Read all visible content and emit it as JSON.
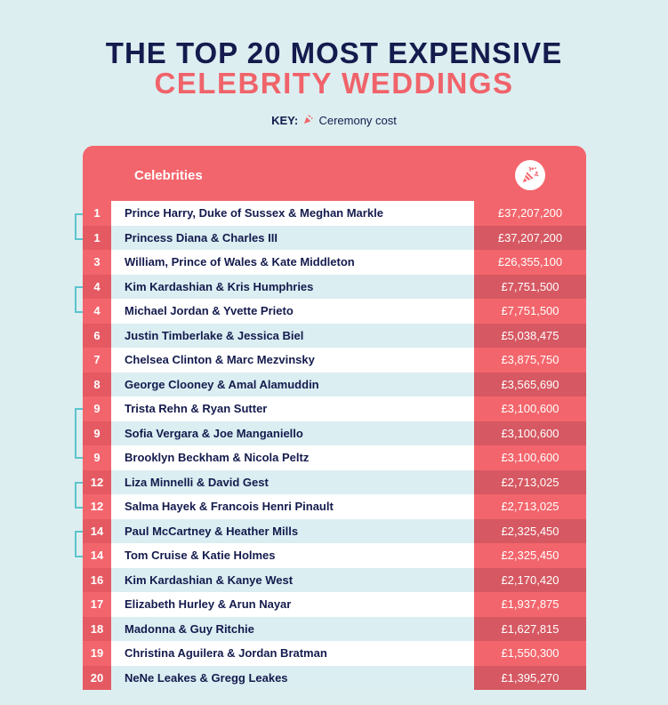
{
  "title": {
    "line1": "THE TOP 20 MOST EXPENSIVE",
    "line2": "CELEBRITY WEDDINGS"
  },
  "key": {
    "label": "KEY:",
    "icon": "party-popper-icon",
    "text": "Ceremony cost"
  },
  "table": {
    "header_label": "Celebrities",
    "header_icon": "party-popper-icon",
    "rows": [
      {
        "rank": "1",
        "name": "Prince Harry, Duke of Sussex & Meghan Markle",
        "cost": "£37,207,200"
      },
      {
        "rank": "1",
        "name": "Princess Diana & Charles III",
        "cost": "£37,207,200"
      },
      {
        "rank": "3",
        "name": "William, Prince of Wales & Kate Middleton",
        "cost": "£26,355,100"
      },
      {
        "rank": "4",
        "name": "Kim Kardashian & Kris Humphries",
        "cost": "£7,751,500"
      },
      {
        "rank": "4",
        "name": "Michael Jordan & Yvette Prieto",
        "cost": "£7,751,500"
      },
      {
        "rank": "6",
        "name": "Justin Timberlake & Jessica Biel",
        "cost": "£5,038,475"
      },
      {
        "rank": "7",
        "name": "Chelsea Clinton & Marc Mezvinsky",
        "cost": "£3,875,750"
      },
      {
        "rank": "8",
        "name": "George Clooney & Amal Alamuddin",
        "cost": "£3,565,690"
      },
      {
        "rank": "9",
        "name": "Trista Rehn & Ryan Sutter",
        "cost": "£3,100,600"
      },
      {
        "rank": "9",
        "name": "Sofia Vergara & Joe Manganiello",
        "cost": "£3,100,600"
      },
      {
        "rank": "9",
        "name": "Brooklyn Beckham & Nicola Peltz",
        "cost": "£3,100,600"
      },
      {
        "rank": "12",
        "name": "Liza Minnelli & David Gest",
        "cost": "£2,713,025"
      },
      {
        "rank": "12",
        "name": "Salma Hayek & Francois Henri Pinault",
        "cost": "£2,713,025"
      },
      {
        "rank": "14",
        "name": "Paul McCartney & Heather Mills",
        "cost": "£2,325,450"
      },
      {
        "rank": "14",
        "name": "Tom Cruise & Katie Holmes",
        "cost": "£2,325,450"
      },
      {
        "rank": "16",
        "name": "Kim Kardashian & Kanye West",
        "cost": "£2,170,420"
      },
      {
        "rank": "17",
        "name": "Elizabeth Hurley & Arun Nayar",
        "cost": "£1,937,875"
      },
      {
        "rank": "18",
        "name": "Madonna & Guy Ritchie",
        "cost": "£1,627,815"
      },
      {
        "rank": "19",
        "name": "Christina Aguilera & Jordan Bratman",
        "cost": "£1,550,300"
      },
      {
        "rank": "20",
        "name": "NeNe Leakes & Gregg Leakes",
        "cost": "£1,395,270"
      }
    ]
  },
  "colors": {
    "navy": "#141b4d",
    "coral": "#f0636a",
    "background": "#ddeef1",
    "tie_bracket": "#5cc4cc"
  }
}
